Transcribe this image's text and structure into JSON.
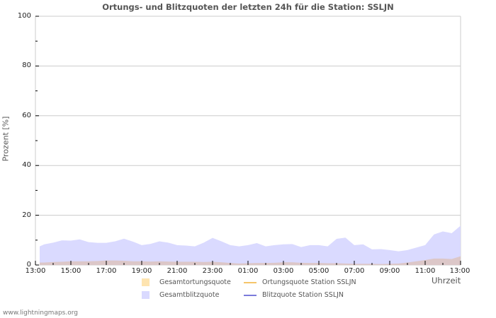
{
  "title": "Ortungs- und Blitzquoten der letzten 24h für die Station: SSLJN",
  "footer": "www.lightningmaps.org",
  "colors": {
    "gesamtortung_fill": "#fee4b0",
    "gesamtblitz_fill": "#dadaff",
    "overlap_fill": "#dcc7c8",
    "ortung_line": "#f5c56a",
    "blitz_line": "#7b7bdb",
    "grid": "#cccccc"
  },
  "chart_data": {
    "type": "area",
    "title": "Ortungs- und Blitzquoten der letzten 24h für die Station: SSLJN",
    "xlabel": "Uhrzeit",
    "ylabel": "Prozent   [%]",
    "ylim": [
      0,
      100
    ],
    "yticks": [
      "0",
      "20",
      "40",
      "60",
      "80",
      "100"
    ],
    "xticks": [
      "13:00",
      "15:00",
      "17:00",
      "19:00",
      "21:00",
      "23:00",
      "01:00",
      "03:00",
      "05:00",
      "07:00",
      "09:00",
      "11:00",
      "13:00"
    ],
    "grid": true,
    "legend_position": "bottom",
    "x": [
      "13:15",
      "13:30",
      "14:00",
      "14:30",
      "15:00",
      "15:30",
      "16:00",
      "16:30",
      "17:00",
      "17:30",
      "18:00",
      "18:30",
      "19:00",
      "19:30",
      "20:00",
      "20:30",
      "21:00",
      "21:30",
      "22:00",
      "22:30",
      "23:00",
      "23:30",
      "00:00",
      "00:30",
      "01:00",
      "01:30",
      "02:00",
      "02:30",
      "03:00",
      "03:30",
      "04:00",
      "04:30",
      "05:00",
      "05:30",
      "06:00",
      "06:30",
      "07:00",
      "07:30",
      "08:00",
      "08:30",
      "09:00",
      "09:30",
      "10:00",
      "10:30",
      "11:00",
      "11:30",
      "12:00",
      "12:30",
      "13:00"
    ],
    "series": [
      {
        "name": "Gesamtblitzquote",
        "values": [
          7.5,
          8.3,
          9.0,
          9.9,
          9.8,
          10.3,
          9.2,
          8.9,
          8.9,
          9.5,
          10.6,
          9.4,
          8.0,
          8.5,
          9.5,
          9.0,
          8.0,
          7.8,
          7.5,
          9.0,
          10.9,
          9.5,
          8.0,
          7.5,
          8.0,
          8.8,
          7.5,
          8.0,
          8.3,
          8.4,
          7.2,
          8.0,
          8.0,
          7.5,
          10.5,
          11.0,
          8.0,
          8.3,
          6.3,
          6.4,
          6.0,
          5.5,
          6.0,
          7.0,
          8.0,
          12.3,
          13.5,
          12.8,
          15.8
        ]
      },
      {
        "name": "Gesamtortungsquote",
        "values": [
          1.0,
          1.0,
          1.2,
          1.3,
          1.5,
          1.5,
          1.5,
          1.6,
          1.8,
          1.8,
          1.7,
          1.5,
          1.5,
          1.4,
          1.5,
          1.4,
          1.3,
          1.3,
          1.3,
          1.2,
          1.3,
          1.1,
          0.8,
          0.6,
          0.7,
          0.8,
          0.8,
          0.9,
          1.1,
          1.1,
          0.9,
          0.8,
          0.8,
          0.7,
          0.7,
          0.6,
          0.5,
          0.5,
          0.5,
          0.4,
          0.5,
          0.6,
          1.0,
          1.5,
          2.0,
          2.6,
          2.6,
          2.4,
          3.5
        ]
      },
      {
        "name": "Ortungsquote Station SSLJN",
        "values": []
      },
      {
        "name": "Blitzquote Station SSLJN",
        "values": []
      }
    ]
  },
  "legend": [
    {
      "label": "Gesamtortungsquote",
      "kind": "area"
    },
    {
      "label": "Ortungsquote Station SSLJN",
      "kind": "line"
    },
    {
      "label": "Gesamtblitzquote",
      "kind": "area"
    },
    {
      "label": "Blitzquote Station SSLJN",
      "kind": "line"
    }
  ]
}
